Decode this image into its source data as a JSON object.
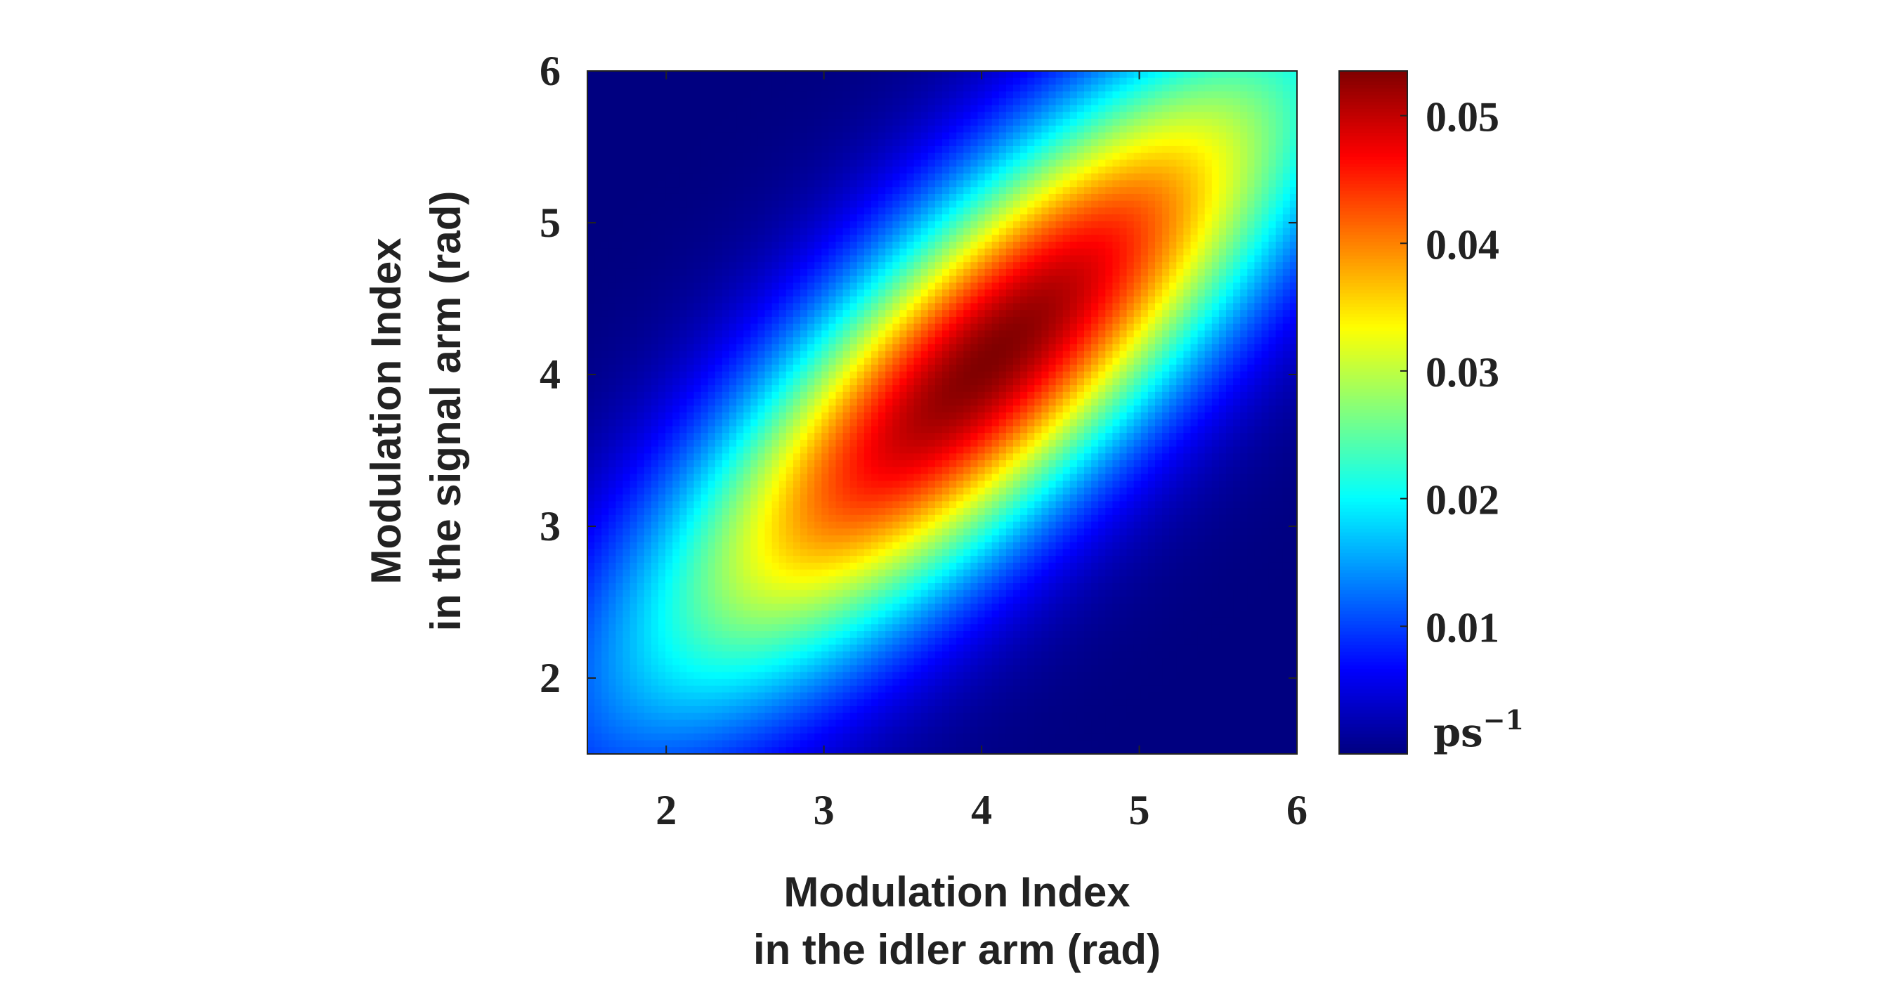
{
  "chart_data": {
    "type": "heatmap",
    "title": "",
    "xlabel": [
      "Modulation Index",
      "in the idler arm (rad)"
    ],
    "ylabel": [
      "Modulation Index",
      "in the signal arm (rad)"
    ],
    "xlim": [
      1.5,
      6
    ],
    "ylim": [
      1.5,
      6
    ],
    "x_ticks": [
      2,
      3,
      4,
      5,
      6
    ],
    "y_ticks": [
      2,
      3,
      4,
      5,
      6
    ],
    "x_tick_labels": [
      "2",
      "3",
      "4",
      "5",
      "6"
    ],
    "y_tick_labels": [
      "2",
      "3",
      "4",
      "5",
      "6"
    ],
    "colormap": "jet",
    "colorbar": {
      "lim": [
        0,
        0.0535
      ],
      "ticks": [
        0.01,
        0.02,
        0.03,
        0.04,
        0.05
      ],
      "tick_labels": [
        "0.01",
        "0.02",
        "0.03",
        "0.04",
        "0.05"
      ],
      "unit_label": "ps",
      "unit_exponent": "−1"
    },
    "peak": {
      "x": 4.05,
      "y": 4.1,
      "value": 0.0535
    },
    "description_of_field": "elongated elliptical distribution oriented along the diagonal x = y",
    "grid": false
  }
}
